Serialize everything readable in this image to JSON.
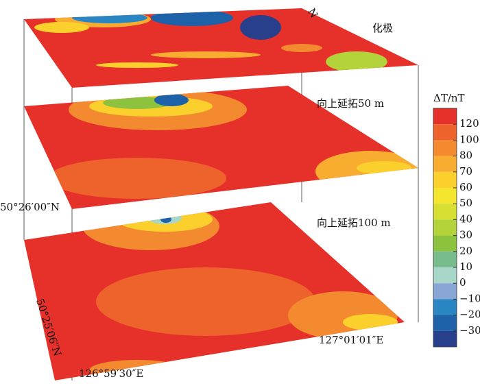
{
  "layers": [
    {
      "label": "化极"
    },
    {
      "label": "向上延拓50 m"
    },
    {
      "label": "向上延拓100 m"
    }
  ],
  "north_arrow": "N",
  "coordinates": {
    "north_top": "50°26′00″N",
    "north_bottom": "50°25′06″N",
    "east_left": "126°59′30″E",
    "east_right": "127°01′01″E"
  },
  "colorbar": {
    "title": "ΔT/nT",
    "ticks": [
      120,
      100,
      80,
      70,
      60,
      50,
      40,
      30,
      20,
      10,
      0,
      {
        "value": -10,
        "label": "−10"
      },
      {
        "value": -20,
        "label": "−20"
      },
      {
        "value": -30,
        "label": "−30"
      }
    ],
    "colors": [
      "#e6302a",
      "#ee632c",
      "#f38a30",
      "#f8ac30",
      "#fcd02c",
      "#f4e62e",
      "#d6df32",
      "#b4d23a",
      "#8cc23e",
      "#78bb8c",
      "#a8d6c8",
      "#8aa6d6",
      "#2a86c2",
      "#1d62a8",
      "#283f8c"
    ]
  }
}
